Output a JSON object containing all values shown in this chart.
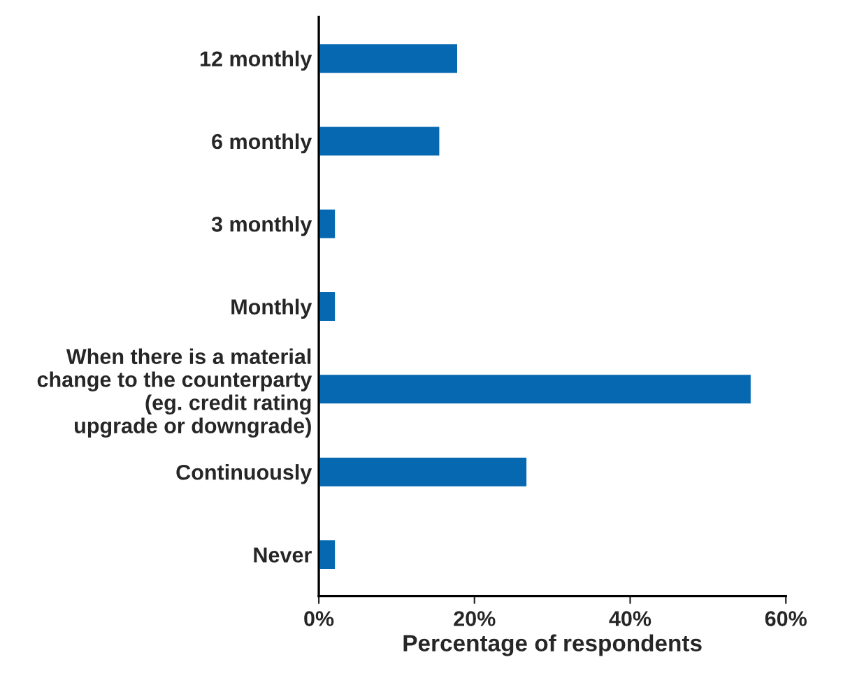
{
  "chart_data": {
    "type": "bar",
    "orientation": "horizontal",
    "xlabel": "Percentage of respondents",
    "categories": [
      "12 monthly",
      "6 monthly",
      "3 monthly",
      "Monthly",
      "When there is a material\nchange to the counterparty\n(eg. credit rating\nupgrade or downgrade)",
      "Continuously",
      "Never"
    ],
    "values": [
      17.9,
      15.6,
      2.2,
      2.2,
      55.6,
      26.8,
      2.2
    ],
    "color": "#0568b0",
    "xlim": [
      0,
      60
    ],
    "xticks": [
      {
        "value": 0,
        "label": "0%"
      },
      {
        "value": 20,
        "label": "20%"
      },
      {
        "value": 40,
        "label": "40%"
      },
      {
        "value": 60,
        "label": "60%"
      }
    ],
    "grid": false
  }
}
